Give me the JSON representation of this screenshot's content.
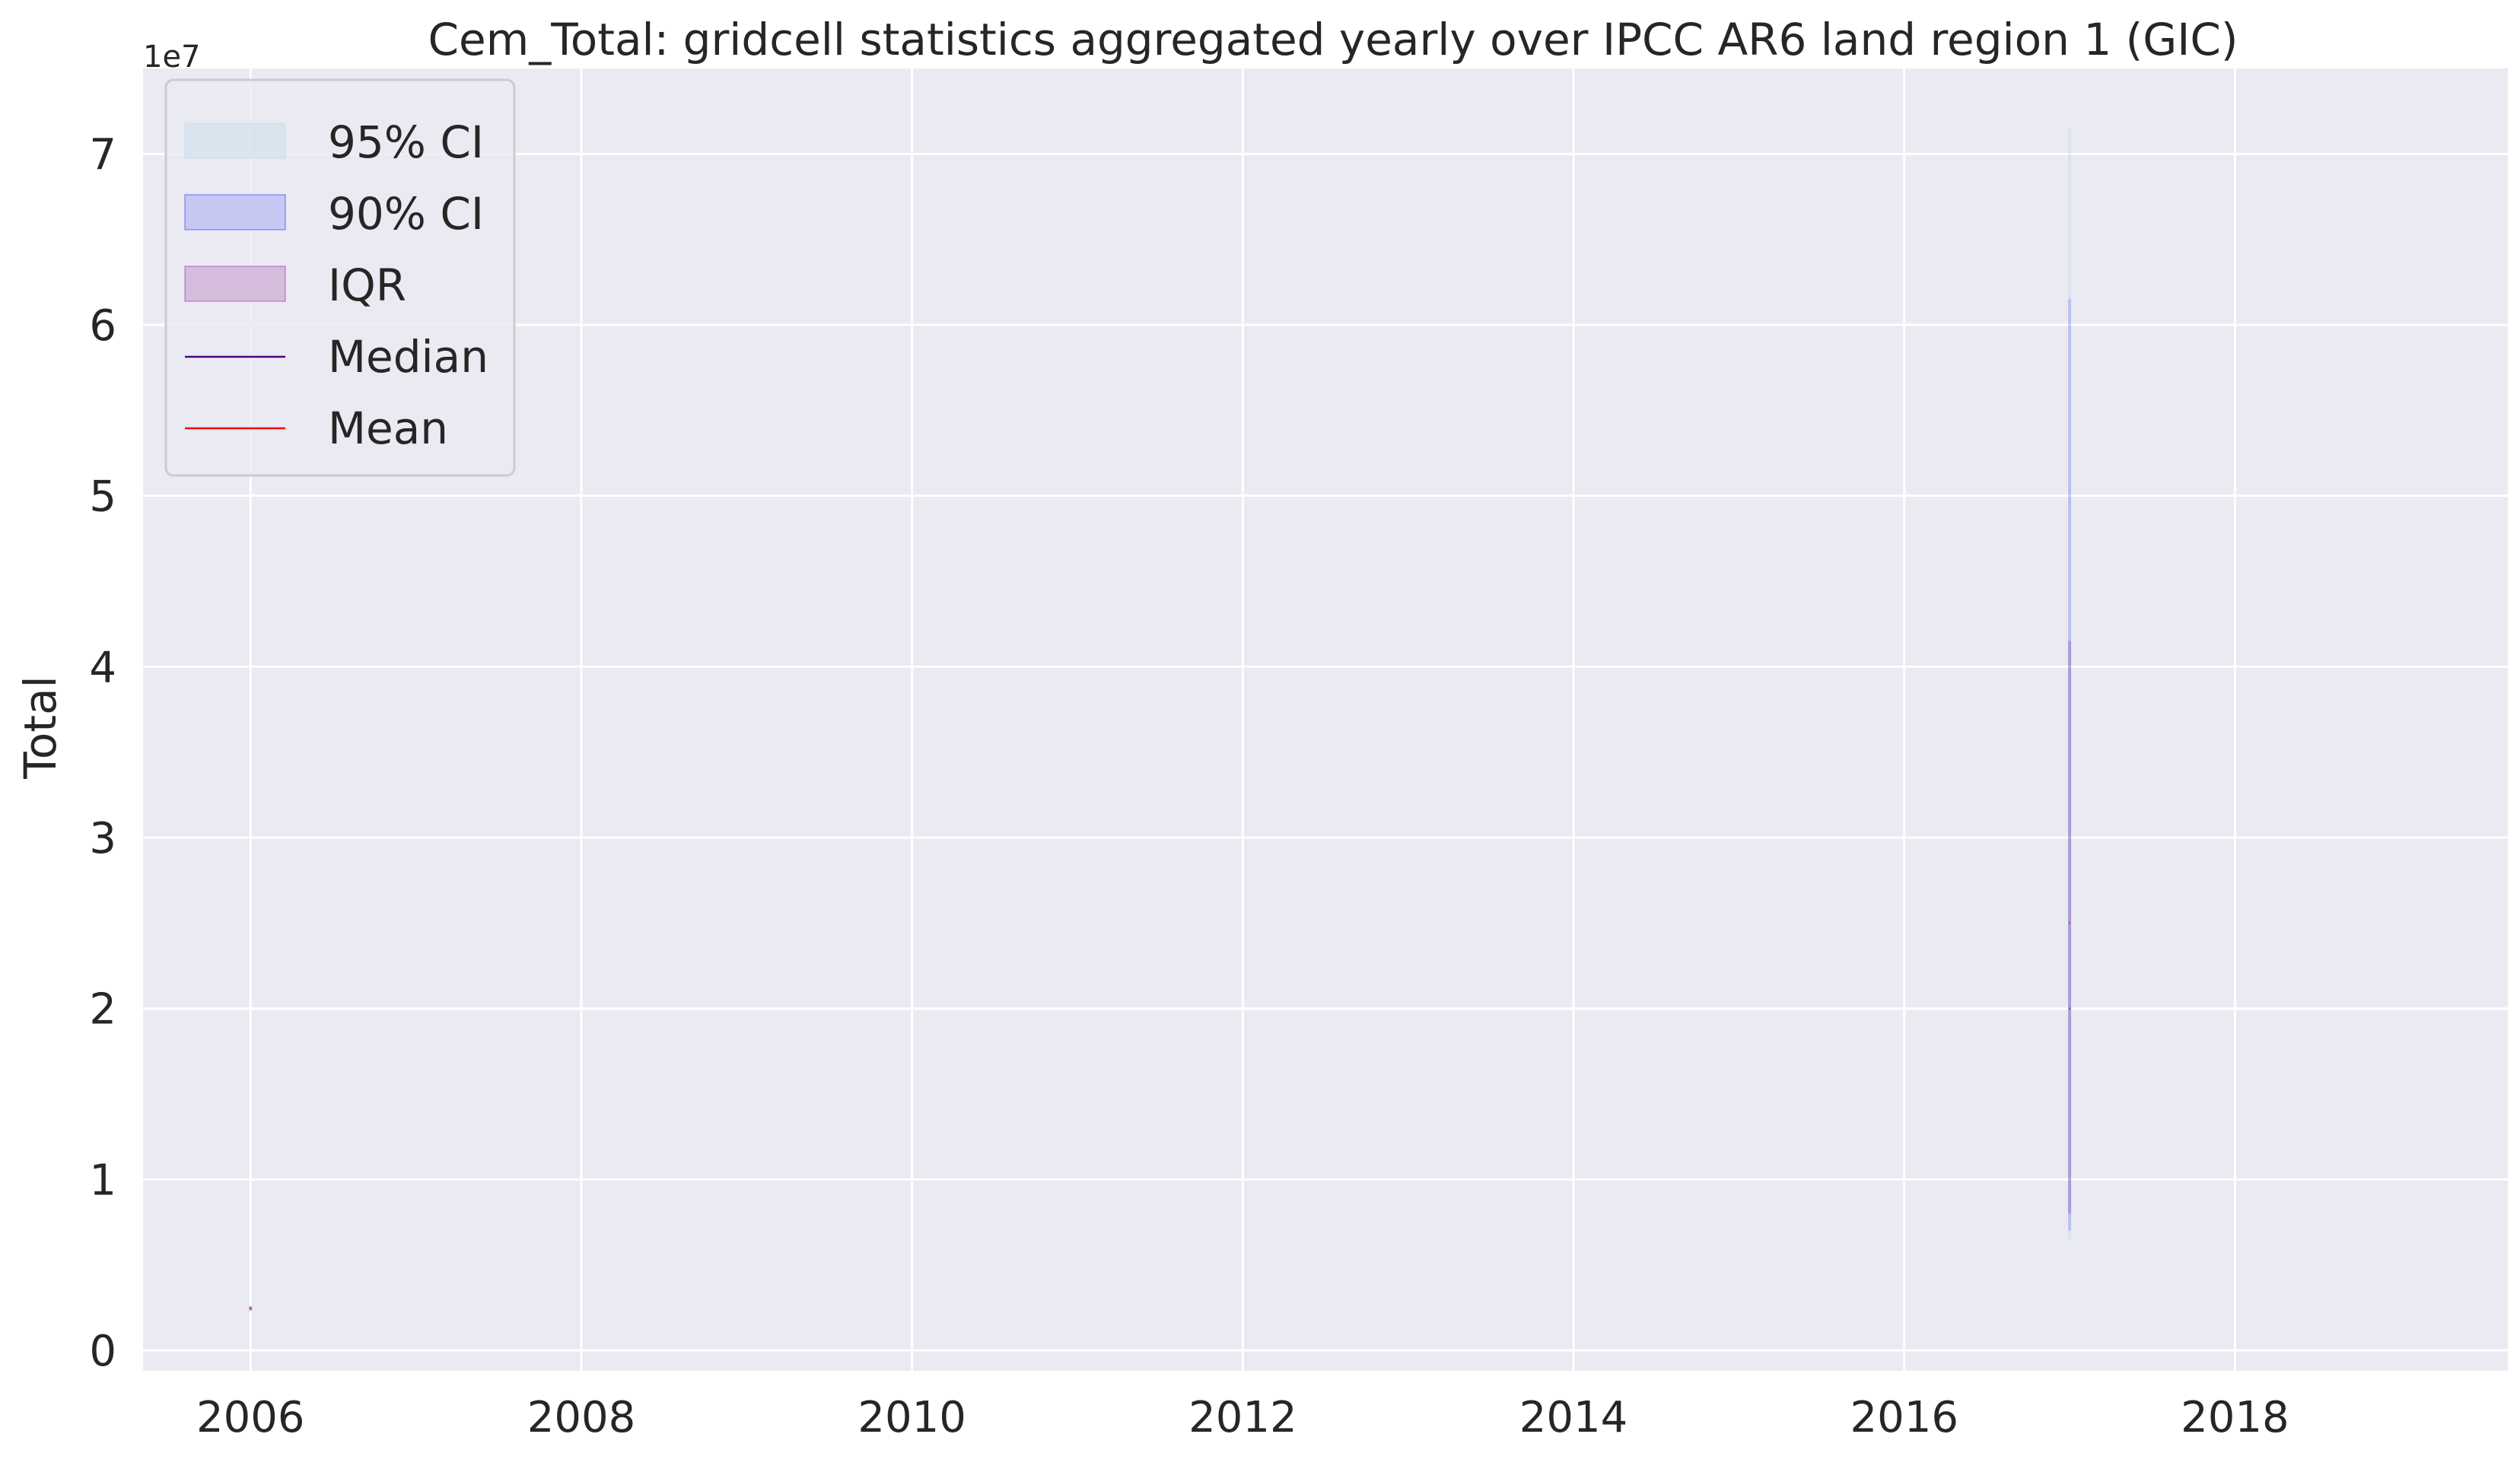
{
  "chart_data": {
    "type": "area",
    "title": "Cem_Total: gridcell statistics aggregated yearly over IPCC AR6 land region 1 (GIC)",
    "xlabel": "",
    "ylabel": "Total",
    "y_offset_label": "1e7",
    "xlim": [
      2005.35,
      2019.65
    ],
    "ylim": [
      -1.2,
      75.0
    ],
    "x_ticks": [
      2006,
      2008,
      2010,
      2012,
      2014,
      2016,
      2018
    ],
    "x_tick_labels": [
      "2006",
      "2008",
      "2010",
      "2012",
      "2014",
      "2016",
      "2018"
    ],
    "y_ticks": [
      0,
      10,
      20,
      30,
      40,
      50,
      60,
      70
    ],
    "y_tick_labels": [
      "0",
      "1",
      "2",
      "3",
      "4",
      "5",
      "6",
      "7"
    ],
    "y_unit_note": "y values in units of 1e6 (axis shows multiples of 1e7)",
    "grid": true,
    "legend_position": "top-left",
    "series": [
      {
        "name": "95% CI",
        "kind": "band",
        "color": "#add8e6",
        "x": [
          2006,
          2017
        ],
        "lower": [
          2.3,
          6.5
        ],
        "upper": [
          2.6,
          71.5
        ]
      },
      {
        "name": "90% CI",
        "kind": "band",
        "color": "#0000ff",
        "x": [
          2006,
          2017
        ],
        "lower": [
          2.3,
          7.0
        ],
        "upper": [
          2.6,
          61.5
        ]
      },
      {
        "name": "IQR",
        "kind": "band",
        "color": "#800080",
        "x": [
          2006,
          2017
        ],
        "lower": [
          2.35,
          8.0
        ],
        "upper": [
          2.55,
          41.5
        ]
      },
      {
        "name": "Median",
        "kind": "line",
        "color": "#4b0082",
        "x": [
          2006,
          2017
        ],
        "values": [
          2.45,
          20.0
        ]
      },
      {
        "name": "Mean",
        "kind": "line",
        "color": "#ff0000",
        "x": [
          2006,
          2017
        ],
        "values": [
          2.45,
          25.0
        ]
      }
    ]
  }
}
